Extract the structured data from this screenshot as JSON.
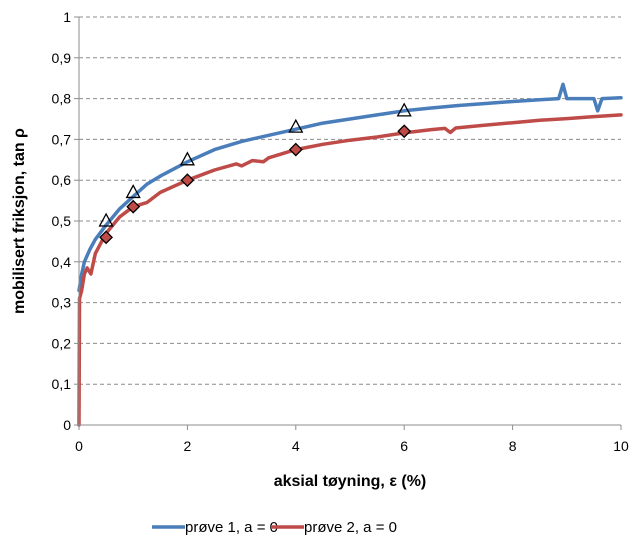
{
  "chart_data": {
    "type": "line",
    "title": "",
    "xlabel": "aksial tøyning, ε (%)",
    "ylabel": "mobilisert friksjon, tan ρ",
    "xlim": [
      0,
      10
    ],
    "ylim": [
      0,
      1
    ],
    "x_ticks": [
      "0",
      "2",
      "4",
      "6",
      "8",
      "10"
    ],
    "y_ticks": [
      "0",
      "0,1",
      "0,2",
      "0,3",
      "0,4",
      "0,5",
      "0,6",
      "0,7",
      "0,8",
      "0,9",
      "1"
    ],
    "grid": "horizontal dashed",
    "legend_position": "bottom",
    "series": [
      {
        "name": "prøve 1, a = 0",
        "color": "#4a7ebb",
        "points": [
          [
            0,
            0.33
          ],
          [
            0.05,
            0.37
          ],
          [
            0.1,
            0.4
          ],
          [
            0.2,
            0.43
          ],
          [
            0.3,
            0.455
          ],
          [
            0.5,
            0.49
          ],
          [
            0.75,
            0.53
          ],
          [
            1.0,
            0.56
          ],
          [
            1.25,
            0.59
          ],
          [
            1.5,
            0.61
          ],
          [
            2.0,
            0.645
          ],
          [
            2.5,
            0.675
          ],
          [
            3.0,
            0.695
          ],
          [
            3.5,
            0.71
          ],
          [
            4.0,
            0.725
          ],
          [
            4.5,
            0.74
          ],
          [
            5.0,
            0.75
          ],
          [
            5.5,
            0.76
          ],
          [
            6.0,
            0.77
          ],
          [
            6.5,
            0.777
          ],
          [
            7.0,
            0.783
          ],
          [
            7.5,
            0.788
          ],
          [
            8.0,
            0.793
          ],
          [
            8.5,
            0.797
          ],
          [
            8.85,
            0.8
          ],
          [
            8.93,
            0.835
          ],
          [
            9.0,
            0.8
          ],
          [
            9.5,
            0.8
          ],
          [
            9.57,
            0.77
          ],
          [
            9.65,
            0.8
          ],
          [
            10.0,
            0.802
          ]
        ],
        "markers": "triangle",
        "marker_points": [
          [
            0.5,
            0.5
          ],
          [
            1.0,
            0.57
          ],
          [
            2.0,
            0.65
          ],
          [
            4.0,
            0.73
          ],
          [
            6.0,
            0.77
          ]
        ]
      },
      {
        "name": "prøve 2, a = 0",
        "color": "#be4b48",
        "points": [
          [
            0,
            0
          ],
          [
            0.01,
            0.31
          ],
          [
            0.05,
            0.33
          ],
          [
            0.1,
            0.37
          ],
          [
            0.15,
            0.385
          ],
          [
            0.22,
            0.37
          ],
          [
            0.3,
            0.42
          ],
          [
            0.5,
            0.47
          ],
          [
            0.75,
            0.51
          ],
          [
            1.0,
            0.535
          ],
          [
            1.25,
            0.545
          ],
          [
            1.5,
            0.57
          ],
          [
            2.0,
            0.6
          ],
          [
            2.5,
            0.625
          ],
          [
            2.9,
            0.64
          ],
          [
            3.0,
            0.635
          ],
          [
            3.2,
            0.648
          ],
          [
            3.4,
            0.645
          ],
          [
            3.5,
            0.655
          ],
          [
            4.0,
            0.675
          ],
          [
            4.5,
            0.688
          ],
          [
            5.0,
            0.698
          ],
          [
            5.5,
            0.706
          ],
          [
            6.0,
            0.716
          ],
          [
            6.5,
            0.724
          ],
          [
            6.75,
            0.727
          ],
          [
            6.85,
            0.717
          ],
          [
            6.95,
            0.728
          ],
          [
            7.5,
            0.735
          ],
          [
            8.0,
            0.741
          ],
          [
            8.5,
            0.747
          ],
          [
            9.0,
            0.751
          ],
          [
            9.5,
            0.756
          ],
          [
            10.0,
            0.76
          ]
        ],
        "markers": "diamond",
        "marker_points": [
          [
            0.5,
            0.46
          ],
          [
            1.0,
            0.535
          ],
          [
            2.0,
            0.6
          ],
          [
            4.0,
            0.675
          ],
          [
            6.0,
            0.72
          ]
        ]
      }
    ]
  }
}
